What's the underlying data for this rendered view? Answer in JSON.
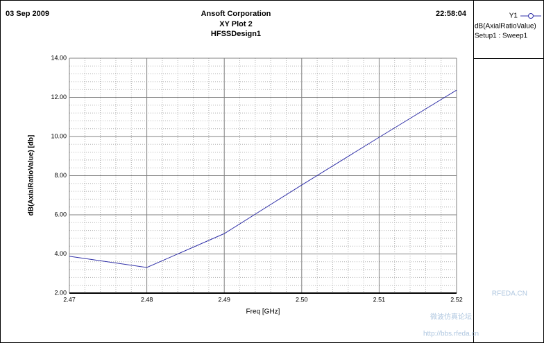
{
  "chart_data": {
    "type": "line",
    "date": "03 Sep 2009",
    "company": "Ansoft Corporation",
    "title": "XY Plot 2",
    "subtitle": "HFSSDesign1",
    "time": "22:58:04",
    "x_label": "Freq [GHz]",
    "y_label": "dB(AxialRatioValue) [db]",
    "x": [
      2.47,
      2.48,
      2.49,
      2.5,
      2.51,
      2.52
    ],
    "series": [
      {
        "name": "dB(AxialRatioValue)",
        "short_name": "Y1",
        "setup": "Setup1 : Sweep1",
        "color": "#3030a8",
        "values": [
          3.88,
          3.31,
          5.04,
          7.52,
          9.96,
          12.37
        ]
      }
    ],
    "xlim": [
      2.47,
      2.52
    ],
    "xticks": [
      2.47,
      2.48,
      2.49,
      {
        "value": 2.5,
        "label": "2.50"
      },
      2.51,
      2.52
    ],
    "ylim": [
      2,
      14
    ],
    "yticks": [
      {
        "value": 2,
        "label": "2.00"
      },
      {
        "value": 4,
        "label": "4.00"
      },
      {
        "value": 6,
        "label": "6.00"
      },
      {
        "value": 8,
        "label": "8.00"
      },
      {
        "value": 10,
        "label": "10.00"
      },
      {
        "value": 12,
        "label": "12.00"
      },
      {
        "value": 14,
        "label": "14.00"
      }
    ],
    "grid": true,
    "minor_grid": true,
    "watermark": {
      "site": "RFEDA.CN",
      "forum": "微波仿真论坛",
      "url": "http://bbs.rfeda.cn"
    }
  }
}
